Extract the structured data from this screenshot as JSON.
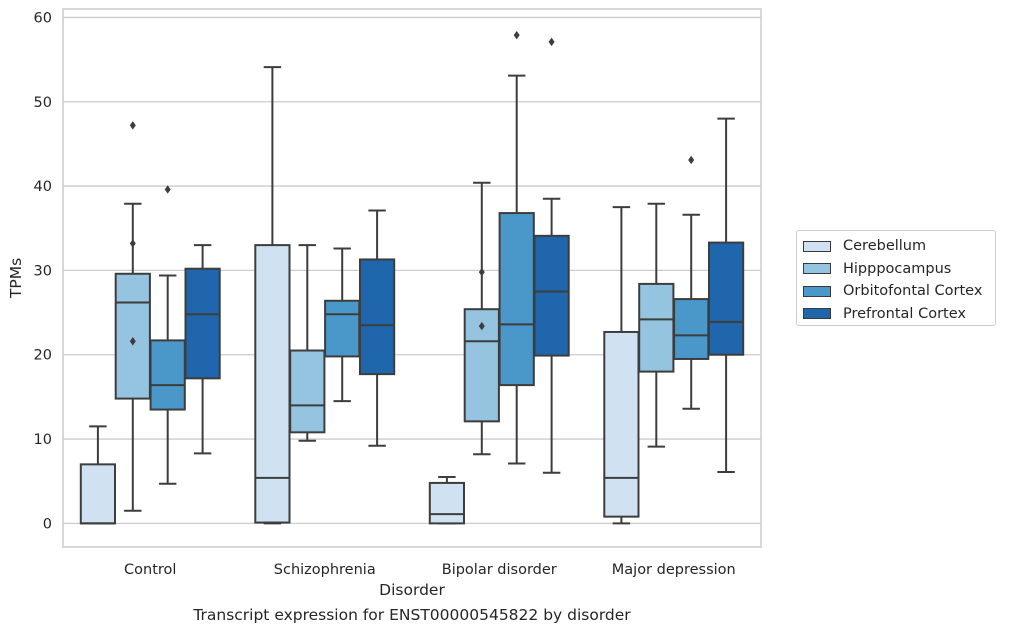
{
  "chart_data": {
    "type": "box",
    "caption": "Transcript expression for ENST00000545822 by disorder",
    "xlabel": "Disorder",
    "ylabel": "TPMs",
    "ylim": [
      -2.8,
      61
    ],
    "yticks": [
      0,
      10,
      20,
      30,
      40,
      50,
      60
    ],
    "grid": true,
    "legend_position": "right",
    "categories": [
      "Control",
      "Schizophrenia",
      "Bipolar disorder",
      "Major depression"
    ],
    "series": [
      {
        "name": "Cerebellum",
        "color": "#d0e1f2",
        "boxes": [
          {
            "q1": 0,
            "median": 0,
            "q3": 7,
            "whisker_low": 0,
            "whisker_high": 11.5,
            "outliers": []
          },
          {
            "q1": 0.1,
            "median": 5.4,
            "q3": 33,
            "whisker_low": 0,
            "whisker_high": 54.1,
            "outliers": []
          },
          {
            "q1": 0,
            "median": 1.1,
            "q3": 4.8,
            "whisker_low": 0,
            "whisker_high": 5.5,
            "outliers": []
          },
          {
            "q1": 0.8,
            "median": 5.4,
            "q3": 22.7,
            "whisker_low": 0,
            "whisker_high": 37.5,
            "outliers": []
          }
        ]
      },
      {
        "name": "Hipppocampus",
        "color": "#94c4df",
        "boxes": [
          {
            "q1": 14.8,
            "median": 26.2,
            "q3": 29.6,
            "whisker_low": 1.5,
            "whisker_high": 37.9,
            "outliers": [
              47.2,
              33.2,
              21.6
            ]
          },
          {
            "q1": 10.8,
            "median": 14,
            "q3": 20.5,
            "whisker_low": 9.8,
            "whisker_high": 33,
            "outliers": []
          },
          {
            "q1": 12.1,
            "median": 21.6,
            "q3": 25.4,
            "whisker_low": 8.2,
            "whisker_high": 40.4,
            "outliers": [
              29.8,
              23.4
            ]
          },
          {
            "q1": 18,
            "median": 24.2,
            "q3": 28.4,
            "whisker_low": 9.1,
            "whisker_high": 37.9,
            "outliers": []
          }
        ]
      },
      {
        "name": "Orbitofontal Cortex",
        "color": "#4a98c9",
        "boxes": [
          {
            "q1": 13.5,
            "median": 16.4,
            "q3": 21.7,
            "whisker_low": 4.7,
            "whisker_high": 29.4,
            "outliers": [
              39.6
            ]
          },
          {
            "q1": 19.8,
            "median": 24.8,
            "q3": 26.4,
            "whisker_low": 14.5,
            "whisker_high": 32.6,
            "outliers": []
          },
          {
            "q1": 16.4,
            "median": 23.6,
            "q3": 36.8,
            "whisker_low": 7.1,
            "whisker_high": 53.1,
            "outliers": [
              57.9
            ]
          },
          {
            "q1": 19.5,
            "median": 22.3,
            "q3": 26.6,
            "whisker_low": 13.6,
            "whisker_high": 36.6,
            "outliers": [
              43.1
            ]
          }
        ]
      },
      {
        "name": "Prefrontal Cortex",
        "color": "#2066ac",
        "boxes": [
          {
            "q1": 17.2,
            "median": 24.8,
            "q3": 30.2,
            "whisker_low": 8.3,
            "whisker_high": 33,
            "outliers": []
          },
          {
            "q1": 17.7,
            "median": 23.5,
            "q3": 31.3,
            "whisker_low": 9.2,
            "whisker_high": 37.1,
            "outliers": []
          },
          {
            "q1": 19.9,
            "median": 27.5,
            "q3": 34.1,
            "whisker_low": 6,
            "whisker_high": 38.5,
            "outliers": [
              57.1
            ]
          },
          {
            "q1": 20,
            "median": 23.9,
            "q3": 33.3,
            "whisker_low": 6.1,
            "whisker_high": 48,
            "outliers": []
          }
        ]
      }
    ]
  }
}
